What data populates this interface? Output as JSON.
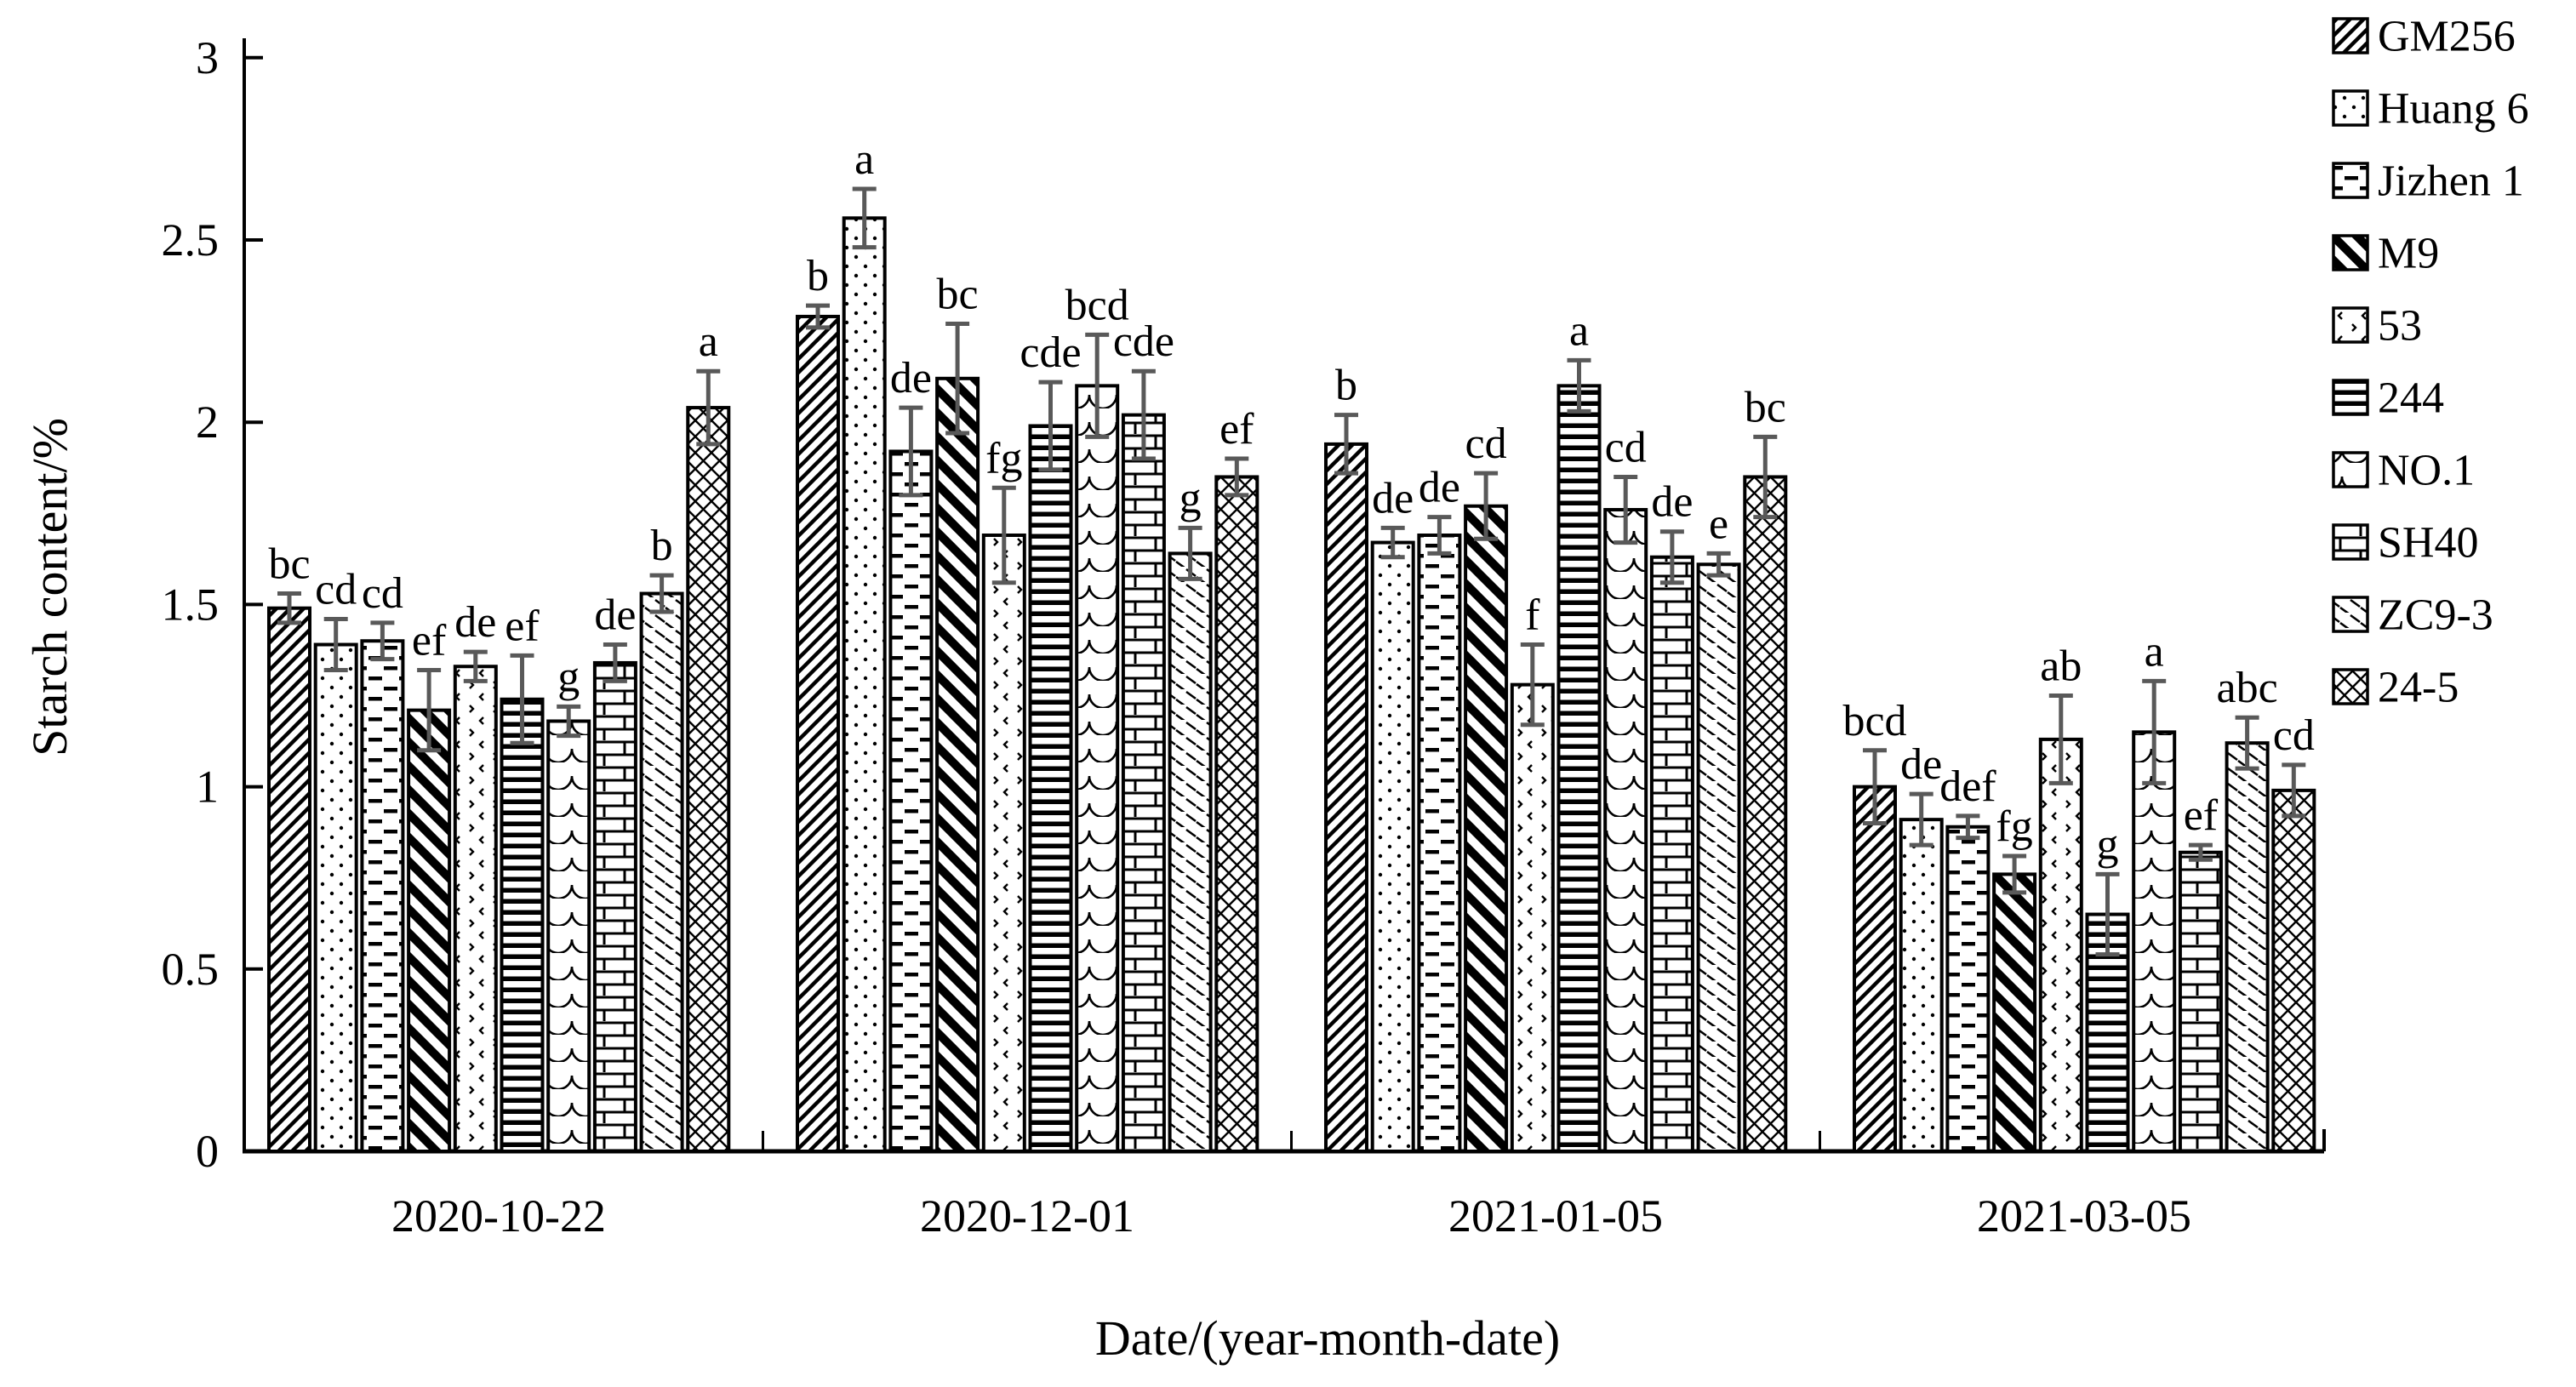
{
  "chart_data": {
    "type": "bar",
    "title": "",
    "ylabel": "Starch content/%",
    "xlabel": "Date/(year-month-date)",
    "ylim": [
      0,
      3
    ],
    "yticks": [
      0,
      0.5,
      1,
      1.5,
      2,
      2.5,
      3
    ],
    "ytick_labels": [
      "0",
      "0.5",
      "1",
      "1.5",
      "2",
      "2.5",
      "3"
    ],
    "grid": false,
    "legend_position": "top-right",
    "colors": {
      "bar_fill": "#ffffff",
      "bar_border": "#000000",
      "error_bar": "#595959",
      "text": "#000000",
      "background": "#ffffff"
    },
    "categories": [
      "2020-10-22",
      "2020-12-01",
      "2021-01-05",
      "2021-03-05"
    ],
    "series": [
      {
        "name": "GM256",
        "pattern": "diagonal-hatch",
        "values": [
          1.49,
          2.29,
          1.94,
          1.0
        ],
        "errors": [
          0.04,
          0.03,
          0.08,
          0.1
        ],
        "sig_letters": [
          "bc",
          "b",
          "b",
          "bcd"
        ]
      },
      {
        "name": "Huang 6",
        "pattern": "dots",
        "values": [
          1.39,
          2.56,
          1.67,
          0.91
        ],
        "errors": [
          0.07,
          0.08,
          0.04,
          0.07
        ],
        "sig_letters": [
          "cd",
          "a",
          "de",
          "de"
        ]
      },
      {
        "name": "Jizhen 1",
        "pattern": "horizontal-dashes",
        "values": [
          1.4,
          1.92,
          1.69,
          0.89
        ],
        "errors": [
          0.05,
          0.12,
          0.05,
          0.03
        ],
        "sig_letters": [
          "cd",
          "de",
          "de",
          "def"
        ]
      },
      {
        "name": "M9",
        "pattern": "back-stripes",
        "values": [
          1.21,
          2.12,
          1.77,
          0.76
        ],
        "errors": [
          0.11,
          0.15,
          0.09,
          0.05
        ],
        "sig_letters": [
          "ef",
          "bc",
          "cd",
          "fg"
        ]
      },
      {
        "name": "53",
        "pattern": "speckle",
        "values": [
          1.33,
          1.69,
          1.28,
          1.13
        ],
        "errors": [
          0.04,
          0.13,
          0.11,
          0.12
        ],
        "sig_letters": [
          "de",
          "fg",
          "f",
          "ab"
        ]
      },
      {
        "name": "244",
        "pattern": "horizontal-lines",
        "values": [
          1.24,
          1.99,
          2.1,
          0.65
        ],
        "errors": [
          0.12,
          0.12,
          0.07,
          0.11
        ],
        "sig_letters": [
          "ef",
          "cde",
          "a",
          "g"
        ]
      },
      {
        "name": "NO.1",
        "pattern": "fish-scale",
        "values": [
          1.18,
          2.1,
          1.76,
          1.15
        ],
        "errors": [
          0.04,
          0.14,
          0.09,
          0.14
        ],
        "sig_letters": [
          "g",
          "bcd",
          "cd",
          "a"
        ]
      },
      {
        "name": "SH40",
        "pattern": "brick",
        "values": [
          1.34,
          2.02,
          1.63,
          0.82
        ],
        "errors": [
          0.05,
          0.12,
          0.07,
          0.02
        ],
        "sig_letters": [
          "de",
          "cde",
          "de",
          "ef"
        ]
      },
      {
        "name": "ZC9-3",
        "pattern": "diagonal-dashes",
        "values": [
          1.53,
          1.64,
          1.61,
          1.12
        ],
        "errors": [
          0.05,
          0.07,
          0.03,
          0.07
        ],
        "sig_letters": [
          "b",
          "g",
          "e",
          "abc"
        ]
      },
      {
        "name": "24-5",
        "pattern": "crosshatch",
        "values": [
          2.04,
          1.85,
          1.85,
          0.99
        ],
        "errors": [
          0.1,
          0.05,
          0.11,
          0.07
        ],
        "sig_letters": [
          "a",
          "ef",
          "bc",
          "cd"
        ]
      }
    ]
  }
}
